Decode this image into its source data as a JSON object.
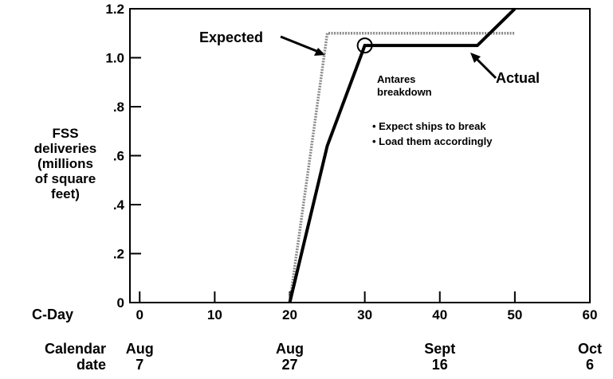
{
  "chart_data": {
    "type": "line",
    "ylabel": [
      "FSS",
      "deliveries",
      "(millions",
      "of square",
      "feet)"
    ],
    "xlabel": "C-Day",
    "x2label": [
      "Calendar",
      "date"
    ],
    "xlim": [
      -1.3,
      60
    ],
    "ylim": [
      0,
      1.2
    ],
    "xticks": [
      0,
      10,
      20,
      30,
      40,
      50,
      60
    ],
    "yticks": [
      0,
      {
        "value": 0.2,
        "label": ".2"
      },
      {
        "value": 0.4,
        "label": ".4"
      },
      {
        "value": 0.6,
        "label": ".6"
      },
      {
        "value": 0.8,
        "label": ".8"
      },
      {
        "value": 1.0,
        "label": "1.0"
      },
      1.2
    ],
    "x2ticks": [
      {
        "value": 0,
        "label": [
          "Aug",
          "7"
        ]
      },
      {
        "value": 20,
        "label": [
          "Aug",
          "27"
        ]
      },
      {
        "value": 40,
        "label": [
          "Sept",
          "16"
        ]
      },
      {
        "value": 60,
        "label": [
          "Oct",
          "6"
        ]
      }
    ],
    "grid": false,
    "series": [
      {
        "name": "Expected",
        "color": "#8a8a8a",
        "x": [
          20,
          25,
          50
        ],
        "values": [
          0,
          1.1,
          1.1
        ]
      },
      {
        "name": "Actual",
        "color": "#000000",
        "x": [
          20,
          25,
          30,
          45,
          50
        ],
        "values": [
          0,
          0.64,
          1.05,
          1.05,
          1.2
        ]
      }
    ],
    "annotations": [
      "Antares",
      "breakdown",
      "• Expect ships to break",
      "• Load them accordingly"
    ]
  }
}
